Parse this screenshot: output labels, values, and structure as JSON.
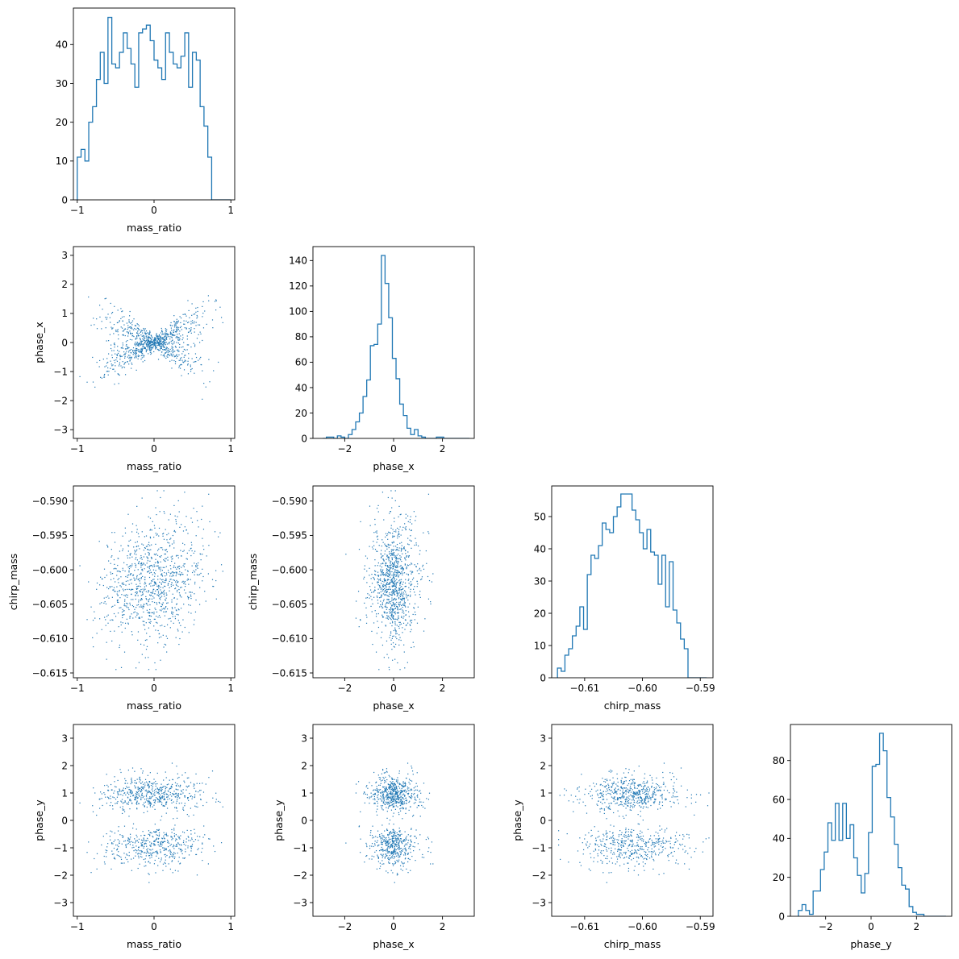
{
  "figure": {
    "type": "corner_plot",
    "parameters": [
      "mass_ratio",
      "phase_x",
      "chirp_mass",
      "phase_y"
    ],
    "series_color": "#1f77b4"
  },
  "chart_data": [
    {
      "type": "histogram",
      "row": 0,
      "col": 0,
      "xlabel": "mass_ratio",
      "ylabel": "",
      "xlim": [
        -1.05,
        1.05
      ],
      "ylim": [
        0,
        49.4
      ],
      "xticks": [
        -1,
        0,
        1
      ],
      "xticklabels": [
        "−1",
        "0",
        "1"
      ],
      "yticks": [
        0,
        10,
        20,
        30,
        40
      ],
      "yticklabels": [
        "0",
        "10",
        "20",
        "30",
        "40"
      ],
      "bin_edges_range": [
        -1.0,
        1.0
      ],
      "bins": 40,
      "counts": [
        11,
        13,
        10,
        20,
        24,
        31,
        38,
        30,
        47,
        35,
        34,
        38,
        43,
        39,
        35,
        29,
        43,
        44,
        45,
        41,
        36,
        34,
        31,
        43,
        38,
        35,
        34,
        37,
        43,
        29,
        38,
        36,
        24,
        19,
        11,
        0,
        0,
        0,
        0,
        0
      ]
    },
    {
      "type": "histogram",
      "row": 1,
      "col": 1,
      "xlabel": "phase_x",
      "ylabel": "",
      "xlim": [
        -3.3,
        3.3
      ],
      "ylim": [
        0,
        151
      ],
      "xticks": [
        -2,
        0,
        2
      ],
      "xticklabels": [
        "−2",
        "0",
        "2"
      ],
      "yticks": [
        0,
        20,
        40,
        60,
        80,
        100,
        120,
        140
      ],
      "yticklabels": [
        "0",
        "20",
        "40",
        "60",
        "80",
        "100",
        "120",
        "140"
      ],
      "bin_edges_range": [
        -2.9,
        3.1
      ],
      "bins": 40,
      "counts": [
        0,
        1,
        1,
        0,
        2,
        1,
        0,
        3,
        7,
        13,
        20,
        33,
        46,
        73,
        74,
        90,
        144,
        122,
        95,
        63,
        47,
        27,
        18,
        8,
        3,
        7,
        2,
        1,
        0,
        0,
        0,
        1,
        1,
        0,
        0,
        0,
        0,
        0,
        0,
        0
      ]
    },
    {
      "type": "histogram",
      "row": 2,
      "col": 2,
      "xlabel": "chirp_mass",
      "ylabel": "",
      "xlim": [
        -0.6157,
        -0.5878
      ],
      "ylim": [
        0,
        59.5
      ],
      "xticks": [
        -0.61,
        -0.6,
        -0.59
      ],
      "xticklabels": [
        "−0.61",
        "−0.60",
        "−0.59"
      ],
      "yticks": [
        0,
        10,
        20,
        30,
        40,
        50
      ],
      "yticklabels": [
        "0",
        "10",
        "20",
        "30",
        "40",
        "50"
      ],
      "bin_edges_range": [
        -0.6147,
        -0.5889
      ],
      "bins": 40,
      "counts": [
        3,
        2,
        7,
        9,
        13,
        16,
        22,
        15,
        32,
        38,
        37,
        41,
        48,
        46,
        45,
        50,
        53,
        57,
        57,
        57,
        52,
        49,
        45,
        40,
        46,
        39,
        38,
        29,
        38,
        22,
        36,
        21,
        17,
        12,
        9,
        0,
        0,
        0,
        0,
        0
      ]
    },
    {
      "type": "histogram",
      "row": 3,
      "col": 3,
      "xlabel": "phase_y",
      "ylabel": "",
      "xlim": [
        -3.55,
        3.55
      ],
      "ylim": [
        0,
        98.5
      ],
      "xticks": [
        -2,
        0,
        2
      ],
      "xticklabels": [
        "−2",
        "0",
        "2"
      ],
      "yticks": [
        0,
        20,
        40,
        60,
        80
      ],
      "yticklabels": [
        "0",
        "20",
        "40",
        "60",
        "80"
      ],
      "bin_edges_range": [
        -3.2,
        3.3
      ],
      "bins": 40,
      "counts": [
        3,
        6,
        3,
        1,
        13,
        13,
        24,
        33,
        48,
        39,
        58,
        39,
        58,
        40,
        47,
        30,
        21,
        12,
        22,
        43,
        77,
        78,
        94,
        85,
        61,
        51,
        37,
        25,
        16,
        14,
        5,
        2,
        1,
        1,
        0,
        0,
        0,
        0,
        0,
        0
      ]
    },
    {
      "type": "scatter",
      "row": 1,
      "col": 0,
      "xlabel": "mass_ratio",
      "ylabel": "phase_x",
      "xlim": [
        -1.05,
        1.05
      ],
      "ylim": [
        -3.3,
        3.3
      ],
      "xticks": [
        -1,
        0,
        1
      ],
      "xticklabels": [
        "−1",
        "0",
        "1"
      ],
      "yticks": [
        -3,
        -2,
        -1,
        0,
        1,
        2,
        3
      ],
      "yticklabels": [
        "−3",
        "−2",
        "−1",
        "0",
        "1",
        "2",
        "3"
      ],
      "x_variable": "mass_ratio",
      "y_variable": "phase_x",
      "n_points": 1000
    },
    {
      "type": "scatter",
      "row": 2,
      "col": 0,
      "xlabel": "mass_ratio",
      "ylabel": "chirp_mass",
      "xlim": [
        -1.05,
        1.05
      ],
      "ylim": [
        -0.6157,
        -0.5878
      ],
      "xticks": [
        -1,
        0,
        1
      ],
      "xticklabels": [
        "−1",
        "0",
        "1"
      ],
      "yticks": [
        -0.615,
        -0.61,
        -0.605,
        -0.6,
        -0.595,
        -0.59
      ],
      "yticklabels": [
        "−0.615",
        "−0.610",
        "−0.605",
        "−0.600",
        "−0.595",
        "−0.590"
      ],
      "x_variable": "mass_ratio",
      "y_variable": "chirp_mass",
      "n_points": 1000
    },
    {
      "type": "scatter",
      "row": 2,
      "col": 1,
      "xlabel": "phase_x",
      "ylabel": "chirp_mass",
      "xlim": [
        -3.3,
        3.3
      ],
      "ylim": [
        -0.6157,
        -0.5878
      ],
      "xticks": [
        -2,
        0,
        2
      ],
      "xticklabels": [
        "−2",
        "0",
        "2"
      ],
      "yticks": [
        -0.615,
        -0.61,
        -0.605,
        -0.6,
        -0.595,
        -0.59
      ],
      "yticklabels": [
        "−0.615",
        "−0.610",
        "−0.605",
        "−0.600",
        "−0.595",
        "−0.590"
      ],
      "x_variable": "phase_x",
      "y_variable": "chirp_mass",
      "n_points": 1000
    },
    {
      "type": "scatter",
      "row": 3,
      "col": 0,
      "xlabel": "mass_ratio",
      "ylabel": "phase_y",
      "xlim": [
        -1.05,
        1.05
      ],
      "ylim": [
        -3.5,
        3.5
      ],
      "xticks": [
        -1,
        0,
        1
      ],
      "xticklabels": [
        "−1",
        "0",
        "1"
      ],
      "yticks": [
        -3,
        -2,
        -1,
        0,
        1,
        2,
        3
      ],
      "yticklabels": [
        "−3",
        "−2",
        "−1",
        "0",
        "1",
        "2",
        "3"
      ],
      "x_variable": "mass_ratio",
      "y_variable": "phase_y",
      "n_points": 1000
    },
    {
      "type": "scatter",
      "row": 3,
      "col": 1,
      "xlabel": "phase_x",
      "ylabel": "phase_y",
      "xlim": [
        -3.3,
        3.3
      ],
      "ylim": [
        -3.5,
        3.5
      ],
      "xticks": [
        -2,
        0,
        2
      ],
      "xticklabels": [
        "−2",
        "0",
        "2"
      ],
      "yticks": [
        -3,
        -2,
        -1,
        0,
        1,
        2,
        3
      ],
      "yticklabels": [
        "−3",
        "−2",
        "−1",
        "0",
        "1",
        "2",
        "3"
      ],
      "x_variable": "phase_x",
      "y_variable": "phase_y",
      "n_points": 1000
    },
    {
      "type": "scatter",
      "row": 3,
      "col": 2,
      "xlabel": "chirp_mass",
      "ylabel": "phase_y",
      "xlim": [
        -0.6157,
        -0.5878
      ],
      "ylim": [
        -3.5,
        3.5
      ],
      "xticks": [
        -0.61,
        -0.6,
        -0.59
      ],
      "xticklabels": [
        "−0.61",
        "−0.60",
        "−0.59"
      ],
      "yticks": [
        -3,
        -2,
        -1,
        0,
        1,
        2,
        3
      ],
      "yticklabels": [
        "−3",
        "−2",
        "−1",
        "0",
        "1",
        "2",
        "3"
      ],
      "x_variable": "chirp_mass",
      "y_variable": "phase_y",
      "n_points": 1000
    }
  ]
}
